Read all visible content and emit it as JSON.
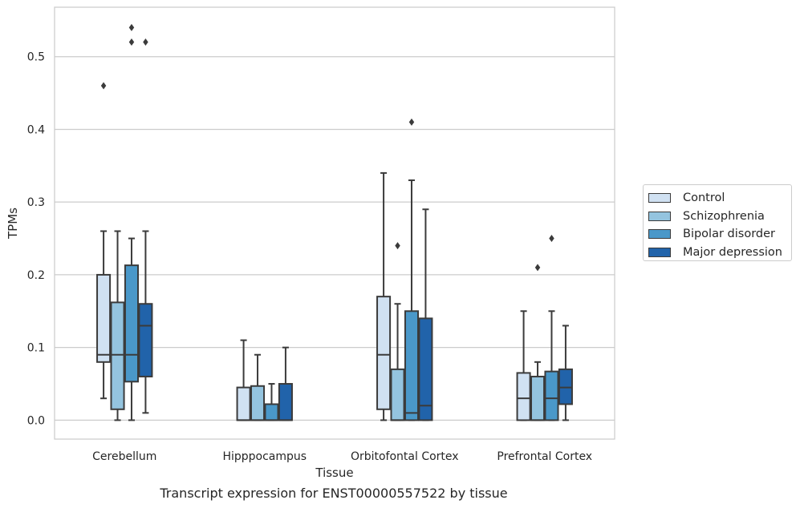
{
  "caption": "Transcript expression for ENST00000557522 by tissue",
  "legend": {
    "items": [
      {
        "label": "Control",
        "color": "#d0e1f2"
      },
      {
        "label": "Schizophrenia",
        "color": "#94c4df"
      },
      {
        "label": "Bipolar disorder",
        "color": "#4a98c9"
      },
      {
        "label": "Major depression",
        "color": "#2163aa"
      }
    ]
  },
  "chart_data": {
    "type": "box",
    "xlabel": "Tissue",
    "ylabel": "TPMs",
    "categories": [
      "Cerebellum",
      "Hipppocampus",
      "Orbitofontal Cortex",
      "Prefrontal Cortex"
    ],
    "yticks": [
      "0.0",
      "0.1",
      "0.2",
      "0.3",
      "0.4",
      "0.5"
    ],
    "ylim": [
      -0.026,
      0.568
    ],
    "grid": "horizontal",
    "legend_position": "right",
    "series": [
      {
        "name": "Control",
        "color": "#d0e1f2",
        "boxes": [
          {
            "whislo": 0.03,
            "q1": 0.08,
            "med": 0.09,
            "q3": 0.2,
            "whishi": 0.26,
            "fliers": [
              0.46
            ]
          },
          {
            "whislo": 0.0,
            "q1": 0.0,
            "med": 0.0,
            "q3": 0.045,
            "whishi": 0.11,
            "fliers": []
          },
          {
            "whislo": 0.0,
            "q1": 0.015,
            "med": 0.09,
            "q3": 0.17,
            "whishi": 0.34,
            "fliers": []
          },
          {
            "whislo": 0.0,
            "q1": 0.0,
            "med": 0.03,
            "q3": 0.065,
            "whishi": 0.15,
            "fliers": []
          }
        ]
      },
      {
        "name": "Schizophrenia",
        "color": "#94c4df",
        "boxes": [
          {
            "whislo": 0.0,
            "q1": 0.015,
            "med": 0.09,
            "q3": 0.162,
            "whishi": 0.26,
            "fliers": []
          },
          {
            "whislo": 0.0,
            "q1": 0.0,
            "med": 0.0,
            "q3": 0.047,
            "whishi": 0.09,
            "fliers": []
          },
          {
            "whislo": 0.0,
            "q1": 0.0,
            "med": 0.0,
            "q3": 0.07,
            "whishi": 0.16,
            "fliers": [
              0.24
            ]
          },
          {
            "whislo": 0.0,
            "q1": 0.0,
            "med": 0.0,
            "q3": 0.06,
            "whishi": 0.08,
            "fliers": [
              0.21
            ]
          }
        ]
      },
      {
        "name": "Bipolar disorder",
        "color": "#4a98c9",
        "boxes": [
          {
            "whislo": 0.0,
            "q1": 0.053,
            "med": 0.09,
            "q3": 0.213,
            "whishi": 0.25,
            "fliers": [
              0.52,
              0.54
            ]
          },
          {
            "whislo": 0.0,
            "q1": 0.0,
            "med": 0.0,
            "q3": 0.022,
            "whishi": 0.05,
            "fliers": []
          },
          {
            "whislo": 0.0,
            "q1": 0.0,
            "med": 0.01,
            "q3": 0.15,
            "whishi": 0.33,
            "fliers": [
              0.41
            ]
          },
          {
            "whislo": 0.0,
            "q1": 0.0,
            "med": 0.03,
            "q3": 0.067,
            "whishi": 0.15,
            "fliers": [
              0.25
            ]
          }
        ]
      },
      {
        "name": "Major depression",
        "color": "#2163aa",
        "boxes": [
          {
            "whislo": 0.01,
            "q1": 0.06,
            "med": 0.13,
            "q3": 0.16,
            "whishi": 0.26,
            "fliers": [
              0.52
            ]
          },
          {
            "whislo": 0.0,
            "q1": 0.0,
            "med": 0.0,
            "q3": 0.05,
            "whishi": 0.1,
            "fliers": []
          },
          {
            "whislo": 0.0,
            "q1": 0.0,
            "med": 0.02,
            "q3": 0.14,
            "whishi": 0.29,
            "fliers": []
          },
          {
            "whislo": 0.0,
            "q1": 0.022,
            "med": 0.045,
            "q3": 0.07,
            "whishi": 0.13,
            "fliers": []
          }
        ]
      }
    ]
  }
}
